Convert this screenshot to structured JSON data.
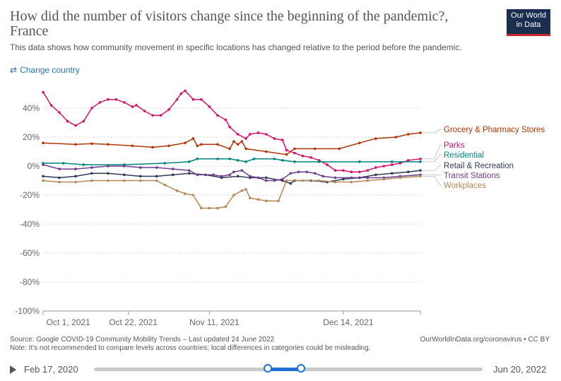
{
  "header": {
    "title": "How did the number of visitors change since the beginning of the pandemic?, France",
    "subtitle": "This data shows how community movement in specific locations has changed relative to the period before the pandemic.",
    "logo_line1": "Our World",
    "logo_line2": "in Data",
    "change_country": "Change country"
  },
  "footer": {
    "source": "Source: Google COVID-19 Community Mobility Trends – Last updated 24 June 2022",
    "note": "Note: It's not recommended to compare levels across countries; local differences in categories could be misleading.",
    "credit": "OurWorldInData.org/coronavirus • CC BY"
  },
  "timeline": {
    "start_label": "Feb 17, 2020",
    "end_label": "Jun 20, 2022",
    "selected_start": 0.447,
    "selected_end": 0.533
  },
  "colors": {
    "grocery": "#b13507",
    "parks": "#d6136c",
    "residential": "#00847e",
    "retail": "#2f3a55",
    "transit": "#6d3e91",
    "workplaces": "#b5885a"
  },
  "chart_data": {
    "type": "line",
    "x_ticks": [
      "Oct 1, 2021",
      "Oct 22, 2021",
      "Nov 11, 2021",
      "Dec 14, 2021"
    ],
    "y_ticks": [
      "40%",
      "20%",
      "0%",
      "-20%",
      "-40%",
      "-60%",
      "-80%",
      "-100%"
    ],
    "ylim": [
      -100,
      50
    ],
    "x_range_days": [
      0,
      93
    ],
    "grid": "horizontal",
    "legend_placement": "right",
    "series": [
      {
        "name": "Grocery & Pharmacy Stores",
        "color_key": "grocery",
        "points": [
          [
            0,
            16
          ],
          [
            8,
            15
          ],
          [
            12,
            15.5
          ],
          [
            16,
            15
          ],
          [
            22,
            14
          ],
          [
            27,
            13
          ],
          [
            31,
            14
          ],
          [
            35,
            16
          ],
          [
            37,
            19
          ],
          [
            38,
            14
          ],
          [
            39,
            15
          ],
          [
            43,
            15
          ],
          [
            46,
            12
          ],
          [
            47,
            17
          ],
          [
            48,
            15
          ],
          [
            49,
            17
          ],
          [
            50,
            12
          ],
          [
            55,
            10
          ],
          [
            60,
            8
          ],
          [
            62,
            12
          ],
          [
            67,
            12
          ],
          [
            73,
            12
          ],
          [
            78,
            16
          ],
          [
            82,
            19
          ],
          [
            87,
            20
          ],
          [
            90,
            22
          ],
          [
            93,
            23
          ]
        ]
      },
      {
        "name": "Parks",
        "color_key": "parks",
        "points": [
          [
            0,
            51
          ],
          [
            2,
            42
          ],
          [
            4,
            37
          ],
          [
            6,
            31
          ],
          [
            8,
            28
          ],
          [
            10,
            31
          ],
          [
            12,
            40
          ],
          [
            14,
            44
          ],
          [
            16,
            46
          ],
          [
            18,
            46
          ],
          [
            20,
            44
          ],
          [
            22,
            41
          ],
          [
            23,
            42
          ],
          [
            25,
            38
          ],
          [
            27,
            35
          ],
          [
            29,
            35
          ],
          [
            31,
            39
          ],
          [
            33,
            46
          ],
          [
            34,
            50
          ],
          [
            35,
            52
          ],
          [
            37,
            46
          ],
          [
            39,
            46
          ],
          [
            41,
            41
          ],
          [
            43,
            35
          ],
          [
            45,
            32
          ],
          [
            46,
            27
          ],
          [
            48,
            22
          ],
          [
            50,
            19
          ],
          [
            51,
            22
          ],
          [
            53,
            23
          ],
          [
            55,
            22
          ],
          [
            57,
            19
          ],
          [
            59,
            18
          ],
          [
            60,
            11
          ],
          [
            62,
            9
          ],
          [
            64,
            7
          ],
          [
            66,
            6
          ],
          [
            68,
            4
          ],
          [
            70,
            1
          ],
          [
            72,
            -3
          ],
          [
            74,
            -3
          ],
          [
            76,
            -4
          ],
          [
            78,
            -4
          ],
          [
            80,
            -3
          ],
          [
            82,
            -1
          ],
          [
            84,
            0
          ],
          [
            86,
            1
          ],
          [
            88,
            2
          ],
          [
            90,
            4
          ],
          [
            93,
            5
          ]
        ]
      },
      {
        "name": "Residential",
        "color_key": "residential",
        "points": [
          [
            0,
            2
          ],
          [
            5,
            2
          ],
          [
            10,
            1
          ],
          [
            20,
            1
          ],
          [
            30,
            2
          ],
          [
            36,
            3
          ],
          [
            38,
            5
          ],
          [
            43,
            5
          ],
          [
            46,
            5
          ],
          [
            48,
            4
          ],
          [
            50,
            3
          ],
          [
            52,
            5
          ],
          [
            57,
            5
          ],
          [
            59,
            4
          ],
          [
            62,
            3
          ],
          [
            68,
            3
          ],
          [
            78,
            3
          ],
          [
            86,
            3
          ],
          [
            93,
            3
          ]
        ]
      },
      {
        "name": "Retail & Recreation",
        "color_key": "retail",
        "points": [
          [
            0,
            -7
          ],
          [
            4,
            -8
          ],
          [
            8,
            -7
          ],
          [
            12,
            -5
          ],
          [
            16,
            -5
          ],
          [
            20,
            -6
          ],
          [
            24,
            -7
          ],
          [
            28,
            -7
          ],
          [
            32,
            -6
          ],
          [
            36,
            -5
          ],
          [
            40,
            -6
          ],
          [
            44,
            -8
          ],
          [
            48,
            -7
          ],
          [
            51,
            -8
          ],
          [
            55,
            -8
          ],
          [
            59,
            -10
          ],
          [
            61,
            -12
          ],
          [
            62,
            -10
          ],
          [
            66,
            -10
          ],
          [
            70,
            -11
          ],
          [
            74,
            -9
          ],
          [
            78,
            -8
          ],
          [
            82,
            -6
          ],
          [
            86,
            -5
          ],
          [
            90,
            -4
          ],
          [
            93,
            -3
          ]
        ]
      },
      {
        "name": "Transit Stations",
        "color_key": "transit",
        "points": [
          [
            0,
            1
          ],
          [
            4,
            -2
          ],
          [
            8,
            -2
          ],
          [
            12,
            -1
          ],
          [
            16,
            0
          ],
          [
            20,
            0
          ],
          [
            24,
            -1
          ],
          [
            28,
            -1
          ],
          [
            32,
            -2
          ],
          [
            36,
            -3
          ],
          [
            38,
            -6
          ],
          [
            42,
            -6
          ],
          [
            44,
            -7
          ],
          [
            46,
            -6
          ],
          [
            47,
            -4
          ],
          [
            49,
            -3
          ],
          [
            51,
            -7
          ],
          [
            53,
            -8
          ],
          [
            55,
            -10
          ],
          [
            57,
            -10
          ],
          [
            59,
            -9
          ],
          [
            61,
            -5
          ],
          [
            63,
            -4
          ],
          [
            65,
            -4
          ],
          [
            67,
            -5
          ],
          [
            69,
            -7
          ],
          [
            72,
            -8
          ],
          [
            76,
            -8
          ],
          [
            80,
            -8
          ],
          [
            84,
            -8
          ],
          [
            88,
            -7
          ],
          [
            93,
            -6
          ]
        ]
      },
      {
        "name": "Workplaces",
        "color_key": "workplaces",
        "points": [
          [
            0,
            -10
          ],
          [
            4,
            -11
          ],
          [
            8,
            -11
          ],
          [
            12,
            -10
          ],
          [
            16,
            -10
          ],
          [
            20,
            -10
          ],
          [
            24,
            -10
          ],
          [
            28,
            -10
          ],
          [
            30,
            -13
          ],
          [
            33,
            -17
          ],
          [
            35,
            -19
          ],
          [
            37,
            -20
          ],
          [
            39,
            -29
          ],
          [
            41,
            -29
          ],
          [
            43,
            -29
          ],
          [
            45,
            -28
          ],
          [
            47,
            -20
          ],
          [
            49,
            -17
          ],
          [
            50,
            -16
          ],
          [
            51,
            -22
          ],
          [
            53,
            -23
          ],
          [
            55,
            -24
          ],
          [
            58,
            -24
          ],
          [
            60,
            -10
          ],
          [
            64,
            -10
          ],
          [
            68,
            -10
          ],
          [
            72,
            -11
          ],
          [
            76,
            -11
          ],
          [
            80,
            -10
          ],
          [
            84,
            -9
          ],
          [
            88,
            -8
          ],
          [
            93,
            -7
          ]
        ]
      }
    ]
  }
}
